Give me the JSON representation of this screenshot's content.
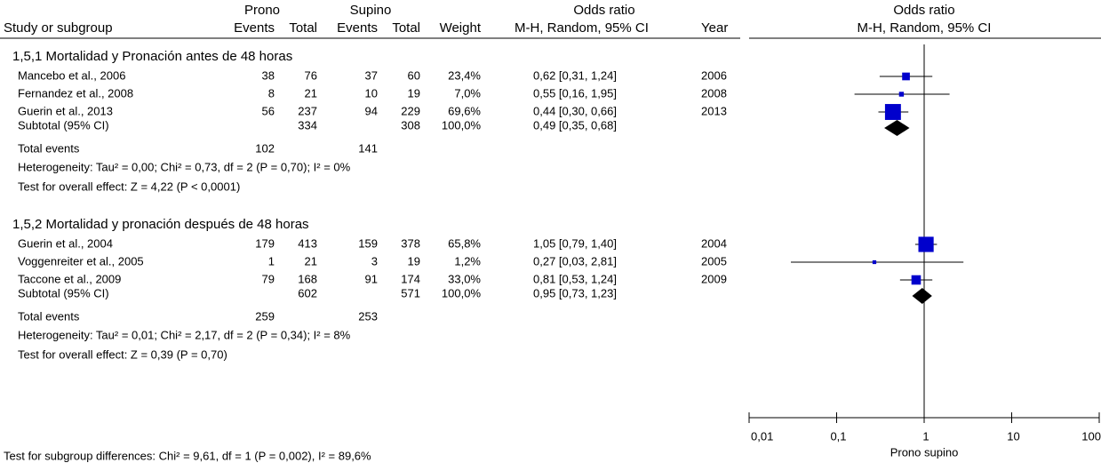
{
  "chart_data": {
    "type": "forest",
    "group_headers": {
      "prono": "Prono",
      "supino": "Supino",
      "or_table": "Odds ratio",
      "or_plot": "Odds ratio"
    },
    "columns": {
      "study": "Study or subgroup",
      "events_prono": "Events",
      "total_prono": "Total",
      "events_supino": "Events",
      "total_supino": "Total",
      "weight": "Weight",
      "ci": "M-H, Random, 95% CI",
      "year": "Year"
    },
    "plot_method": "M-H, Random, 95% CI",
    "subgroups": [
      {
        "title": "1,5,1 Mortalidad y Pronación antes de 48 horas",
        "studies": [
          {
            "name": "Mancebo et al., 2006",
            "events_prono": 38,
            "total_prono": 76,
            "events_supino": 37,
            "total_supino": 60,
            "weight": 23.4,
            "weight_label": "23,4%",
            "ci_label": "0,62 [0,31, 1,24]",
            "or": 0.62,
            "ci_low": 0.31,
            "ci_high": 1.24,
            "year": 2006
          },
          {
            "name": "Fernandez et al., 2008",
            "events_prono": 8,
            "total_prono": 21,
            "events_supino": 10,
            "total_supino": 19,
            "weight": 7.0,
            "weight_label": "7,0%",
            "ci_label": "0,55 [0,16, 1,95]",
            "or": 0.55,
            "ci_low": 0.16,
            "ci_high": 1.95,
            "year": 2008
          },
          {
            "name": "Guerin et al., 2013",
            "events_prono": 56,
            "total_prono": 237,
            "events_supino": 94,
            "total_supino": 229,
            "weight": 69.6,
            "weight_label": "69,6%",
            "ci_label": "0,44 [0,30, 0,66]",
            "or": 0.44,
            "ci_low": 0.3,
            "ci_high": 0.66,
            "year": 2013
          }
        ],
        "subtotal": {
          "name": "Subtotal (95% CI)",
          "total_prono": 334,
          "total_supino": 308,
          "weight_label": "100,0%",
          "ci_label": "0,49 [0,35, 0,68]",
          "or": 0.49,
          "ci_low": 0.35,
          "ci_high": 0.68
        },
        "total_events": {
          "name": "Total events",
          "events_prono": 102,
          "events_supino": 141
        },
        "heterogeneity": "Heterogeneity: Tau² = 0,00; Chi² = 0,73, df = 2 (P = 0,70); I² = 0%",
        "overall_effect": "Test for overall effect: Z = 4,22 (P < 0,0001)"
      },
      {
        "title": "1,5,2 Mortalidad y pronación después de 48 horas",
        "studies": [
          {
            "name": "Guerin et al., 2004",
            "events_prono": 179,
            "total_prono": 413,
            "events_supino": 159,
            "total_supino": 378,
            "weight": 65.8,
            "weight_label": "65,8%",
            "ci_label": "1,05 [0,79, 1,40]",
            "or": 1.05,
            "ci_low": 0.79,
            "ci_high": 1.4,
            "year": 2004
          },
          {
            "name": "Voggenreiter et al., 2005",
            "events_prono": 1,
            "total_prono": 21,
            "events_supino": 3,
            "total_supino": 19,
            "weight": 1.2,
            "weight_label": "1,2%",
            "ci_label": "0,27 [0,03, 2,81]",
            "or": 0.27,
            "ci_low": 0.03,
            "ci_high": 2.81,
            "year": 2005
          },
          {
            "name": "Taccone et al., 2009",
            "events_prono": 79,
            "total_prono": 168,
            "events_supino": 91,
            "total_supino": 174,
            "weight": 33.0,
            "weight_label": "33,0%",
            "ci_label": "0,81 [0,53, 1,24]",
            "or": 0.81,
            "ci_low": 0.53,
            "ci_high": 1.24,
            "year": 2009
          }
        ],
        "subtotal": {
          "name": "Subtotal (95% CI)",
          "total_prono": 602,
          "total_supino": 571,
          "weight_label": "100,0%",
          "ci_label": "0,95 [0,73, 1,23]",
          "or": 0.95,
          "ci_low": 0.73,
          "ci_high": 1.23
        },
        "total_events": {
          "name": "Total events",
          "events_prono": 259,
          "events_supino": 253
        },
        "heterogeneity": "Heterogeneity: Tau² = 0,01; Chi² = 2,17, df = 2 (P = 0,34); I² = 8%",
        "overall_effect": "Test for overall effect: Z = 0,39 (P = 0,70)"
      }
    ],
    "subgroup_differences": "Test for subgroup differences: Chi² = 9,61, df = 1 (P = 0,002), I² = 89,6%",
    "log_x": true,
    "xlim": [
      0.01,
      100
    ],
    "xticks": [
      {
        "value": 0.01,
        "label": "0,01"
      },
      {
        "value": 0.1,
        "label": "0,1"
      },
      1,
      10,
      100
    ],
    "x_label": "Prono supino",
    "study_color": "#0000cc",
    "pooled_color": "#000000"
  }
}
